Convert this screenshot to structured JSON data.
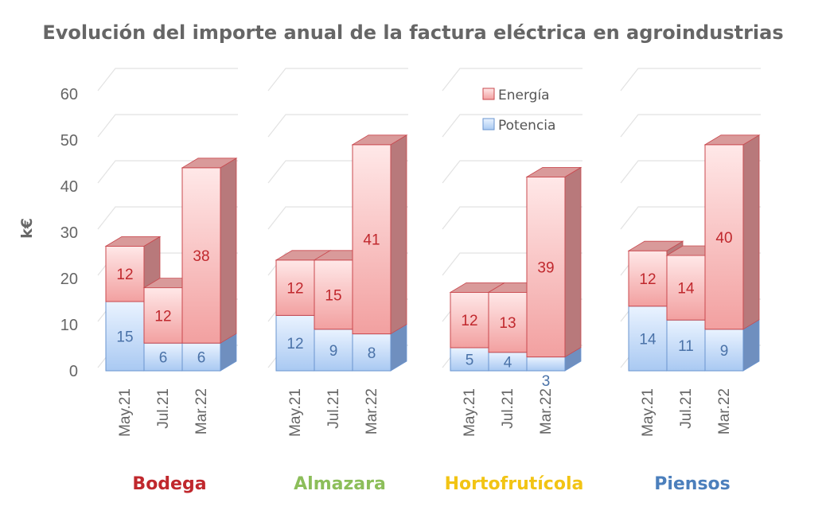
{
  "chart_data": {
    "type": "bar",
    "stacked": true,
    "three_d": true,
    "title": "Evolución del importe anual de la factura eléctrica en agroindustrias",
    "ylabel": "k€",
    "ylim": [
      0,
      60
    ],
    "yticks": [
      "0",
      "10",
      "20",
      "30",
      "40",
      "50",
      "60"
    ],
    "grid": true,
    "legend_position": "top-center",
    "legend": [
      {
        "name": "Energía",
        "color": "#f4a3a3"
      },
      {
        "name": "Potencia",
        "color": "#a8c8f0"
      }
    ],
    "categories": [
      "May.21",
      "Jul.21",
      "Mar.22"
    ],
    "groups": [
      {
        "name": "Bodega",
        "color": "#c0282d",
        "potencia": [
          15,
          6,
          6
        ],
        "energia": [
          12,
          12,
          38
        ]
      },
      {
        "name": "Almazara",
        "color": "#8cbe5a",
        "potencia": [
          12,
          9,
          8
        ],
        "energia": [
          12,
          15,
          41
        ]
      },
      {
        "name": "Hortofrutícola",
        "color": "#f2c414",
        "potencia": [
          5,
          4,
          3
        ],
        "energia": [
          12,
          13,
          39
        ]
      },
      {
        "name": "Piensos",
        "color": "#4b7fbc",
        "potencia": [
          14,
          11,
          9
        ],
        "energia": [
          12,
          14,
          40
        ]
      }
    ]
  }
}
